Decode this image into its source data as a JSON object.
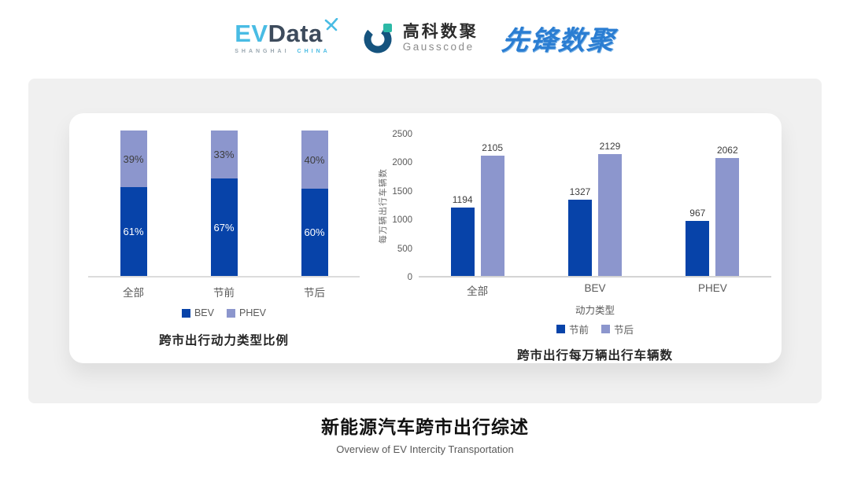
{
  "header": {
    "evdata": {
      "ev": "EV",
      "data": "Data",
      "sub_left": "SHANGHAI",
      "sub_right": "CHINA"
    },
    "gausscode": {
      "cn": "高科数聚",
      "en": "Gausscode"
    },
    "xianfeng": {
      "text": "先锋数聚"
    }
  },
  "colors": {
    "series_dark": "#0743a9",
    "series_light": "#8c96cd",
    "card_gray": "#f0f0f0",
    "axis_line": "#d4d4d4"
  },
  "chart_data": [
    {
      "type": "bar",
      "stacked": true,
      "title": "跨市出行动力类型比例",
      "categories": [
        "全部",
        "节前",
        "节后"
      ],
      "series": [
        {
          "name": "BEV",
          "color": "#0743a9",
          "values": [
            61,
            67,
            60
          ],
          "labels": [
            "61%",
            "67%",
            "60%"
          ],
          "label_color": "#ffffff"
        },
        {
          "name": "PHEV",
          "color": "#8c96cd",
          "values": [
            39,
            33,
            40
          ],
          "labels": [
            "39%",
            "33%",
            "40%"
          ],
          "label_color": "#3d3d3d"
        }
      ],
      "xlabel": "",
      "ylabel": "",
      "ylim": [
        0,
        100
      ],
      "grid": false,
      "legend_position": "bottom"
    },
    {
      "type": "bar",
      "stacked": false,
      "title": "跨市出行每万辆出行车辆数",
      "categories": [
        "全部",
        "BEV",
        "PHEV"
      ],
      "series": [
        {
          "name": "节前",
          "color": "#0743a9",
          "values": [
            1194,
            1327,
            967
          ]
        },
        {
          "name": "节后",
          "color": "#8c96cd",
          "values": [
            2105,
            2129,
            2062
          ]
        }
      ],
      "xlabel": "动力类型",
      "ylabel": "每万辆出行车辆数",
      "yticks": [
        0,
        500,
        1000,
        1500,
        2000,
        2500
      ],
      "ylim": [
        0,
        2500
      ],
      "grid": false,
      "legend_position": "bottom"
    }
  ],
  "footer": {
    "title": "新能源汽车跨市出行综述",
    "subtitle": "Overview of EV Intercity Transportation"
  }
}
